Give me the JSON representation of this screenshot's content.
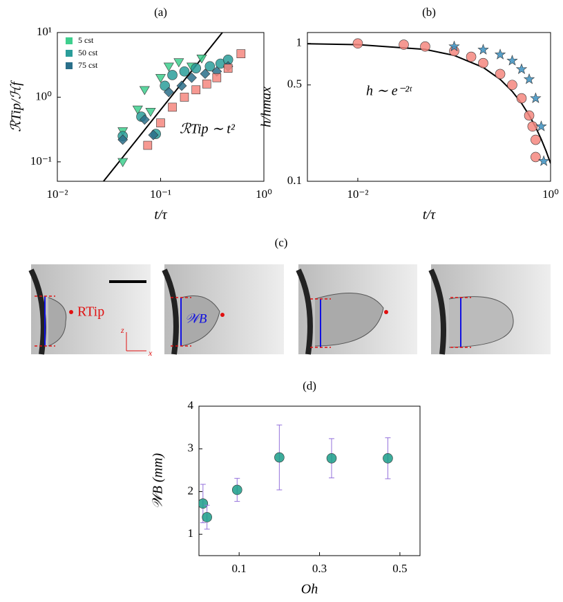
{
  "chart_data": [
    {
      "type": "scatter",
      "title": "(a)",
      "xlabel": "t/τ",
      "ylabel": "ℛTip/ℋf",
      "log_x": true,
      "log_y": true,
      "xlim": [
        0.01,
        1
      ],
      "ylim": [
        0.05,
        10
      ],
      "xticks": [
        {
          "value": 0.01,
          "label": "10⁻²"
        },
        {
          "value": 0.1,
          "label": "10⁻¹"
        },
        {
          "value": 1,
          "label": "10⁰"
        }
      ],
      "yticks": [
        {
          "value": 0.1,
          "label": "10⁻¹"
        },
        {
          "value": 1,
          "label": "10⁰"
        },
        {
          "value": 10,
          "label": "10¹"
        }
      ],
      "legend": "upper left",
      "annotation": "ℛTip ∼ t²",
      "series": [
        {
          "name": "5 cst",
          "color": "#3ecf8e",
          "marker": "triangle",
          "x": [
            0.043,
            0.043,
            0.06,
            0.07,
            0.08,
            0.1,
            0.12,
            0.15,
            0.2,
            0.25
          ],
          "y": [
            0.1,
            0.3,
            0.65,
            1.3,
            0.6,
            2,
            3,
            3.5,
            3,
            4
          ]
        },
        {
          "name": "50 cst",
          "color": "#2a9d9a",
          "marker": "circle",
          "x": [
            0.043,
            0.065,
            0.09,
            0.11,
            0.13,
            0.17,
            0.22,
            0.3,
            0.38,
            0.45
          ],
          "y": [
            0.25,
            0.5,
            0.27,
            1.5,
            2.2,
            2.5,
            2.8,
            3,
            3.3,
            3.8
          ]
        },
        {
          "name": "75 cst",
          "color": "#2a6f8a",
          "marker": "diamond",
          "x": [
            0.043,
            0.07,
            0.085,
            0.12,
            0.16,
            0.2,
            0.27,
            0.35,
            0.45
          ],
          "y": [
            0.22,
            0.45,
            0.26,
            1.2,
            1.5,
            2,
            2.3,
            2.5,
            3
          ]
        },
        {
          "color": "#f4877f",
          "marker": "square",
          "x": [
            0.075,
            0.1,
            0.13,
            0.17,
            0.22,
            0.28,
            0.35,
            0.45,
            0.6
          ],
          "y": [
            0.18,
            0.4,
            0.7,
            1,
            1.3,
            1.6,
            2,
            2.8,
            4.7
          ]
        }
      ],
      "lines": [
        {
          "color": "#000000",
          "x": [
            0.028,
            0.4
          ],
          "y": [
            0.05,
            10.2
          ]
        }
      ]
    },
    {
      "type": "scatter",
      "title": "(b)",
      "xlabel": "t/τ",
      "ylabel": "h/hmax",
      "log_x": true,
      "log_y": true,
      "xlim": [
        0.003,
        1
      ],
      "ylim": [
        0.1,
        1.2
      ],
      "xticks": [
        {
          "value": 0.01,
          "label": "10⁻²"
        },
        {
          "value": 1,
          "label": "10⁰"
        }
      ],
      "yticks": [
        0.1,
        0.5,
        1
      ],
      "annotation": "h ∼ e⁻²ᵗ",
      "series": [
        {
          "color": "#f4877f",
          "marker": "circle",
          "x": [
            0.01,
            0.03,
            0.05,
            0.1,
            0.15,
            0.2,
            0.3,
            0.4,
            0.5,
            0.6,
            0.65,
            0.7,
            0.7
          ],
          "y": [
            1,
            0.98,
            0.95,
            0.88,
            0.8,
            0.72,
            0.6,
            0.5,
            0.4,
            0.3,
            0.25,
            0.2,
            0.15
          ]
        },
        {
          "color": "#3b8fc0",
          "marker": "star",
          "x": [
            0.1,
            0.2,
            0.3,
            0.4,
            0.5,
            0.6,
            0.7,
            0.8,
            0.85
          ],
          "y": [
            0.95,
            0.9,
            0.83,
            0.75,
            0.65,
            0.55,
            0.4,
            0.25,
            0.14
          ]
        }
      ],
      "lines": [
        {
          "color": "#000000",
          "x": [
            0.003,
            0.01,
            0.05,
            0.1,
            0.2,
            0.3,
            0.4,
            0.5,
            0.6,
            0.7,
            0.8,
            0.9,
            1
          ],
          "y": [
            0.994,
            0.98,
            0.905,
            0.819,
            0.67,
            0.549,
            0.449,
            0.368,
            0.301,
            0.247,
            0.202,
            0.165,
            0.135
          ]
        }
      ]
    },
    {
      "type": "errorbar",
      "title": "(d)",
      "xlabel": "Oh",
      "ylabel": "𝒲B (mm)",
      "xlim": [
        0,
        0.55
      ],
      "ylim": [
        0.5,
        4
      ],
      "xticks": [
        0.1,
        0.3,
        0.5
      ],
      "yticks": [
        1,
        2,
        3,
        4
      ],
      "series": [
        {
          "color": "#1a9e8a",
          "error_color": "#9370db",
          "marker": "circle",
          "x": [
            0.01,
            0.02,
            0.095,
            0.2,
            0.33,
            0.47
          ],
          "y": [
            1.72,
            1.4,
            2.04,
            2.8,
            2.78,
            2.78
          ],
          "errors": [
            0.45,
            0.28,
            0.27,
            0.76,
            0.46,
            0.48
          ]
        }
      ]
    }
  ],
  "images": {
    "title": "(c)",
    "tip_label": "RTip",
    "width_label": "𝒲B",
    "z_label": "z",
    "x_label": "x"
  }
}
